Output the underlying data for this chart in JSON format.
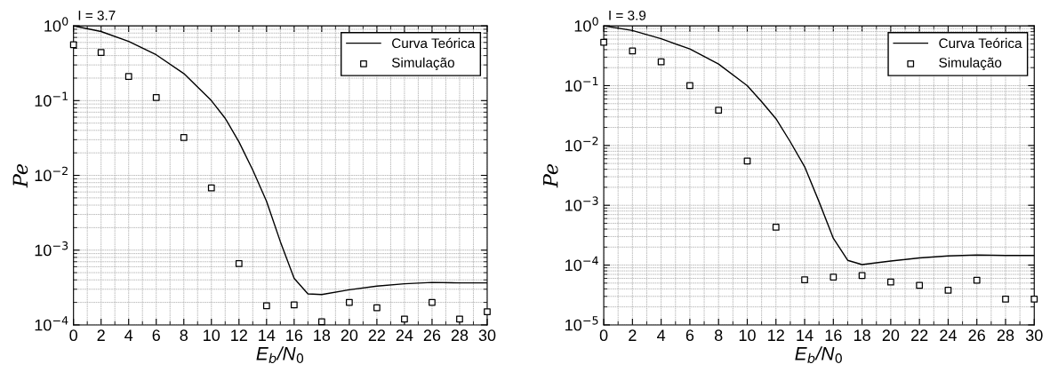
{
  "chart_data": [
    {
      "type": "line",
      "annotations": [
        "I = 3.7"
      ],
      "xlabel": "E$_{b}$/N$_{0}$",
      "ylabel": "Pe",
      "log": "y",
      "grid": true,
      "legend": "top right",
      "xlim": [
        0,
        30
      ],
      "xticks": [
        0,
        2,
        4,
        6,
        8,
        10,
        12,
        14,
        16,
        18,
        20,
        22,
        24,
        26,
        28,
        30
      ],
      "ylim": [
        0.0001,
        1
      ],
      "yticks": [
        {
          "value": 0.0001,
          "label": "10$^{−4}$"
        },
        {
          "value": 0.001,
          "label": "10$^{−3}$"
        },
        {
          "value": 0.01,
          "label": "10$^{−2}$"
        },
        {
          "value": 0.1,
          "label": "10$^{−1}$"
        },
        {
          "value": 1,
          "label": "10$^{0}$"
        }
      ],
      "series": [
        {
          "name": "Curva Teórica",
          "color": "#000000",
          "marker": "none",
          "line_style": "solid",
          "x": [
            0,
            2,
            4,
            6,
            8,
            10,
            11,
            12,
            13,
            14,
            15,
            16,
            17,
            18,
            20,
            22,
            24,
            26,
            28,
            30
          ],
          "values": [
            1.0,
            0.84,
            0.62,
            0.41,
            0.23,
            0.1,
            0.058,
            0.028,
            0.0118,
            0.0045,
            0.0013,
            0.00042,
            0.00026,
            0.000255,
            0.000295,
            0.00033,
            0.000355,
            0.00037,
            0.000365,
            0.000365
          ]
        },
        {
          "name": "Simulação",
          "type": "scatter",
          "color": "#000000",
          "marker": "square",
          "x": [
            0,
            2,
            4,
            6,
            8,
            10,
            12,
            14,
            16,
            18,
            20,
            22,
            24,
            26,
            28,
            30
          ],
          "values": [
            0.56,
            0.44,
            0.21,
            0.11,
            0.032,
            0.0068,
            0.00066,
            0.00018,
            0.000185,
            0.00011,
            0.0002,
            0.00017,
            0.00012,
            0.0002,
            0.00012,
            0.00015
          ]
        }
      ]
    },
    {
      "type": "line",
      "annotations": [
        "I = 3.9"
      ],
      "xlabel": "E$_{b}$/N$_{0}$",
      "ylabel": "Pe",
      "log": "y",
      "grid": true,
      "legend": "top right",
      "xlim": [
        0,
        30
      ],
      "xticks": [
        0,
        2,
        4,
        6,
        8,
        10,
        12,
        14,
        16,
        18,
        20,
        22,
        24,
        26,
        28,
        30
      ],
      "ylim": [
        1e-05,
        1
      ],
      "yticks": [
        {
          "value": 1e-05,
          "label": "10$^{−5}$"
        },
        {
          "value": 0.0001,
          "label": "10$^{−4}$"
        },
        {
          "value": 0.001,
          "label": "10$^{−3}$"
        },
        {
          "value": 0.01,
          "label": "10$^{−2}$"
        },
        {
          "value": 0.1,
          "label": "10$^{−1}$"
        },
        {
          "value": 1,
          "label": "10$^{0}$"
        }
      ],
      "series": [
        {
          "name": "Curva Teórica",
          "color": "#000000",
          "marker": "none",
          "line_style": "solid",
          "x": [
            0,
            2,
            4,
            6,
            8,
            10,
            11,
            12,
            13,
            14,
            15,
            16,
            17,
            18,
            20,
            22,
            24,
            26,
            28,
            30
          ],
          "values": [
            1.0,
            0.835,
            0.61,
            0.41,
            0.23,
            0.1,
            0.054,
            0.028,
            0.0115,
            0.0044,
            0.00115,
            0.00028,
            0.00012,
            0.000102,
            0.000117,
            0.000132,
            0.000142,
            0.000147,
            0.000145,
            0.000145
          ]
        },
        {
          "name": "Simulação",
          "type": "scatter",
          "color": "#000000",
          "marker": "square",
          "x": [
            0,
            2,
            4,
            6,
            8,
            10,
            12,
            14,
            16,
            18,
            20,
            22,
            24,
            26,
            28,
            30
          ],
          "values": [
            0.53,
            0.38,
            0.25,
            0.1,
            0.039,
            0.0055,
            0.00043,
            5.7e-05,
            6.3e-05,
            6.7e-05,
            5.2e-05,
            4.6e-05,
            3.8e-05,
            5.6e-05,
            2.7e-05,
            2.7e-05
          ]
        }
      ]
    }
  ]
}
